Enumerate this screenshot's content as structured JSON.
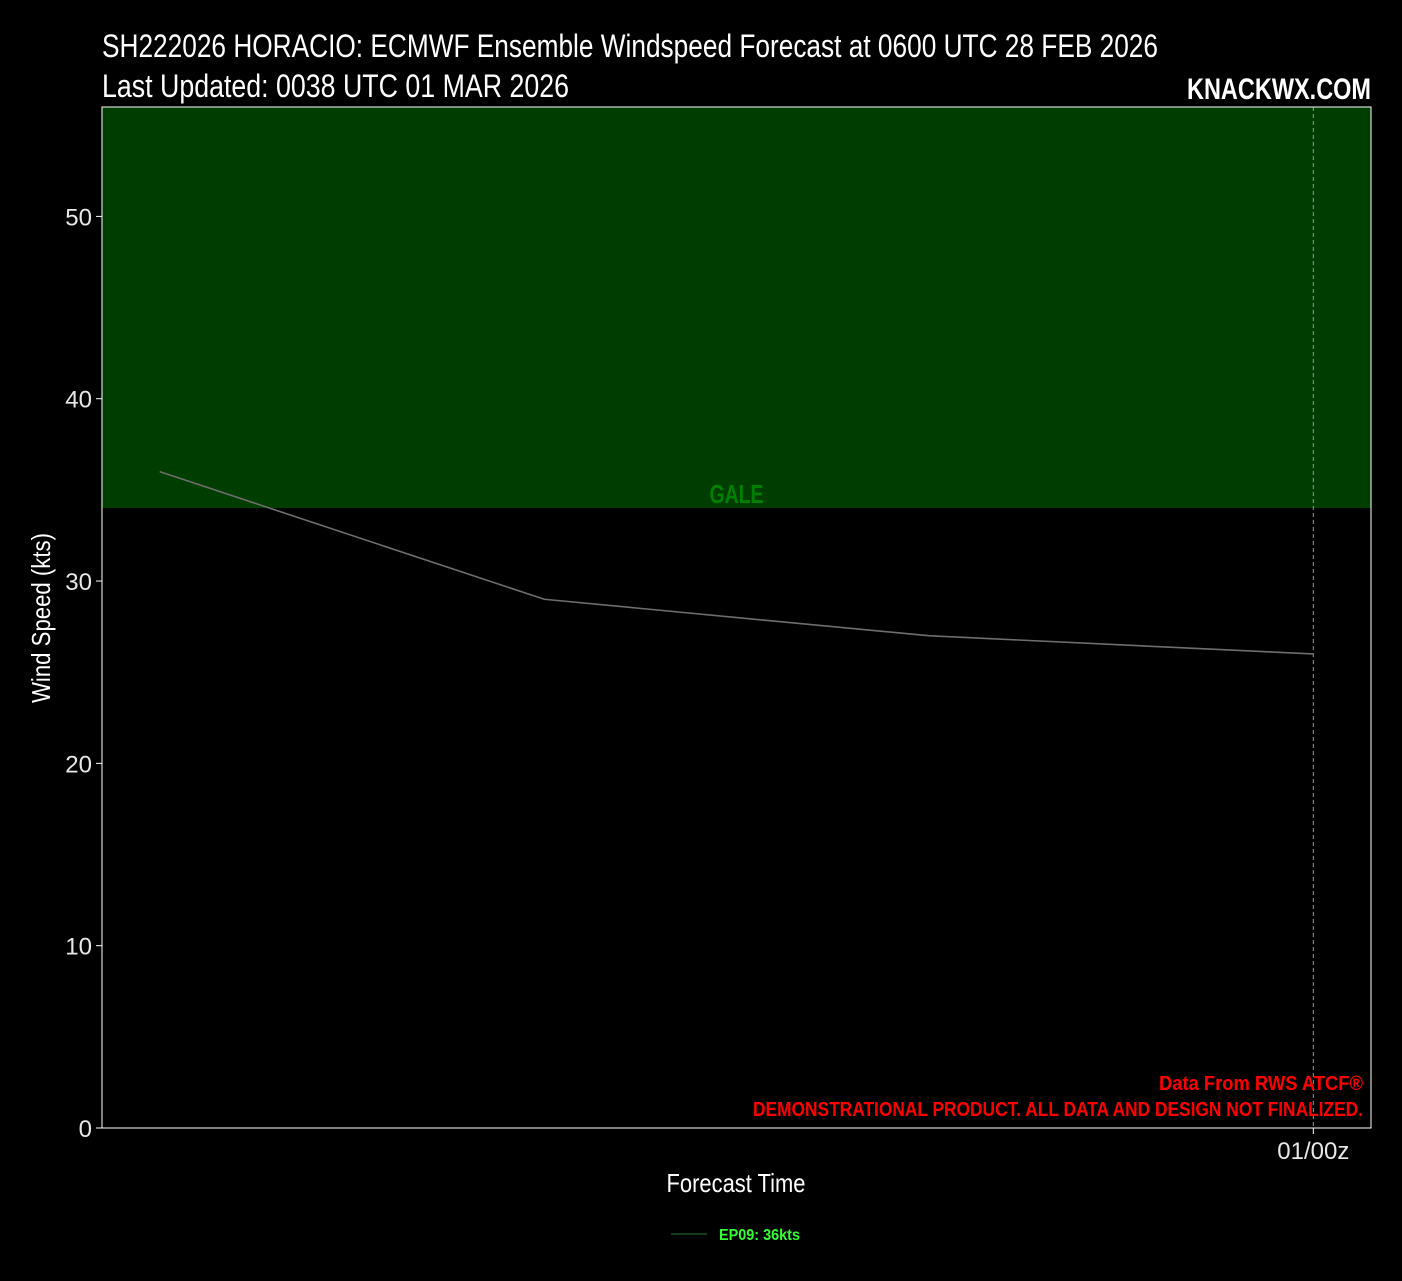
{
  "chart_data": {
    "type": "line",
    "title": "SH222026 HORACIO: ECMWF Ensemble Windspeed Forecast at 0600 UTC 28 FEB 2026",
    "subtitle": "Last Updated: 0038 UTC 01 MAR 2026",
    "brand": "KNACKWX.COM",
    "x_label": "Forecast Time",
    "y_label": "Wind Speed (kts)",
    "x": [
      0,
      6,
      12,
      18
    ],
    "series": [
      {
        "name": "EP09: 36kts",
        "color": "#6e6e6e",
        "values": [
          36,
          29,
          27,
          26
        ]
      }
    ],
    "xlim": [
      -0.9,
      18.9
    ],
    "xticks": [
      {
        "value": 18,
        "label": "01/00z"
      }
    ],
    "ylim": [
      0,
      56
    ],
    "yticks": [
      0,
      10,
      20,
      30,
      40,
      50
    ],
    "bands": [
      {
        "label": "GALE",
        "from": 34,
        "color": "#003d00",
        "label_color": "#008000"
      }
    ],
    "annotations": [
      "Data From RWS ATCF®",
      "DEMONSTRATIONAL PRODUCT. ALL DATA AND DESIGN NOT FINALIZED."
    ],
    "legend": "bottom"
  }
}
